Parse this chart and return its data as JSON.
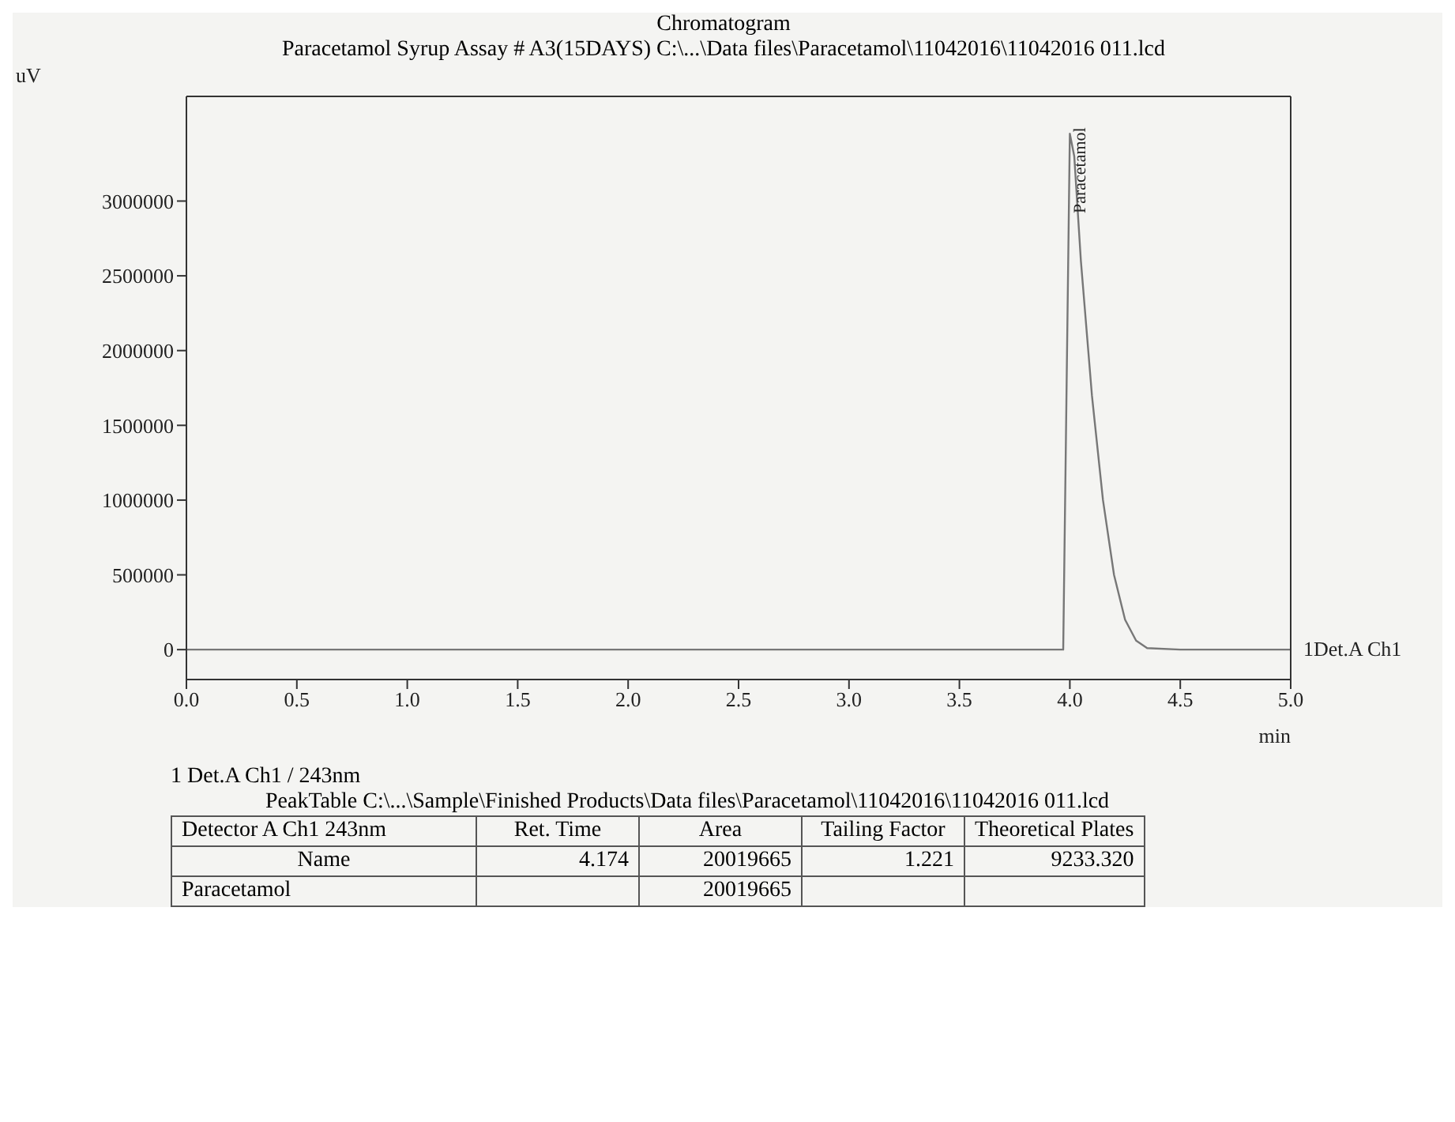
{
  "chart_data": [
    {
      "type": "line",
      "title": "Chromatogram",
      "subtitle": "Paracetamol Syrup  Assay # A3(15DAYS) C:\\...\\Data files\\Paracetamol\\11042016\\11042016  011.lcd",
      "ylabel": "uV",
      "xlabel": "min",
      "x": [
        0,
        0.5,
        1,
        1.5,
        2,
        2.5,
        3,
        3.5,
        3.9,
        3.97,
        4.0,
        4.02,
        4.05,
        4.1,
        4.15,
        4.2,
        4.25,
        4.3,
        4.35,
        4.5,
        5.0
      ],
      "series": [
        {
          "name": "1Det.A Ch1",
          "color": "#777777",
          "values": [
            0,
            0,
            0,
            0,
            0,
            0,
            0,
            0,
            0,
            0,
            3450000,
            3300000,
            2600000,
            1700000,
            1000000,
            500000,
            200000,
            60000,
            10000,
            0,
            0
          ]
        }
      ],
      "xlim": [
        0,
        5
      ],
      "xticks": [
        {
          "value": 0,
          "label": "0.0"
        },
        0.5,
        {
          "value": 1,
          "label": "1.0"
        },
        1.5,
        {
          "value": 2,
          "label": "2.0"
        },
        2.5,
        {
          "value": 3,
          "label": "3.0"
        },
        3.5,
        {
          "value": 4,
          "label": "4.0"
        },
        4.5,
        {
          "value": 5,
          "label": "5.0"
        }
      ],
      "ylim": [
        -200000,
        3700000
      ],
      "yticks": [
        0,
        500000,
        1000000,
        1500000,
        2000000,
        2500000,
        3000000
      ],
      "annotations": [
        {
          "text": "Paracetamol",
          "x": 4.0,
          "y": 3450000
        }
      ],
      "grid": false,
      "legend": false
    },
    {
      "type": "other",
      "title": "1   Det.A Ch1 / 243nm",
      "subtitle": "PeakTable C:\\...\\Sample\\Finished Products\\Data files\\Paracetamol\\11042016\\11042016  011.lcd",
      "categories": [
        "Detector A Ch1 243nm",
        "Ret. Time",
        "Area",
        "Tailing Factor",
        "Theoretical Plates"
      ],
      "cell_labels": [
        [
          "Name",
          "4.174",
          "20019665",
          "1.221",
          "9233.320"
        ],
        [
          "Paracetamol",
          null,
          "20019665",
          null,
          null
        ]
      ]
    }
  ]
}
